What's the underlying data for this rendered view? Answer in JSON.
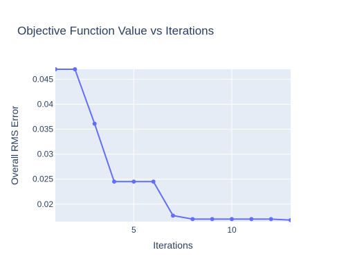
{
  "chart_data": {
    "type": "line",
    "title": "Objective Function Value vs Iterations",
    "xlabel": "Iterations",
    "ylabel": "Overall RMS Error",
    "xlim": [
      1,
      13
    ],
    "ylim": [
      0.0165,
      0.047
    ],
    "x_ticks": [
      5,
      10
    ],
    "y_ticks": [
      0.02,
      0.025,
      0.03,
      0.035,
      0.04,
      0.045
    ],
    "grid": true,
    "legend": "none",
    "colors": {
      "series": "#636efa",
      "plot_background": "#e5ecf6",
      "text": "#2a3f5f"
    },
    "series": [
      {
        "x": [
          1,
          2,
          3,
          4,
          5,
          6,
          7,
          8,
          9,
          10,
          11,
          12,
          13
        ],
        "y": [
          0.047,
          0.047,
          0.0361,
          0.0245,
          0.0245,
          0.0245,
          0.0177,
          0.017,
          0.017,
          0.017,
          0.017,
          0.017,
          0.0168
        ]
      }
    ]
  }
}
